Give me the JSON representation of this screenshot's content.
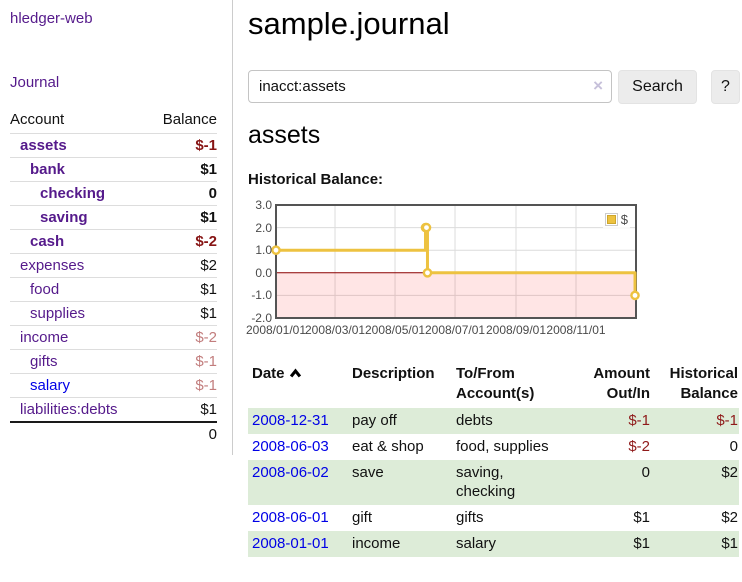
{
  "brand": "hledger-web",
  "sidebar": {
    "journal_link": "Journal",
    "table": {
      "col_account": "Account",
      "col_balance": "Balance",
      "rows": [
        {
          "name": "assets",
          "depth": 0,
          "matched": true,
          "blue": false,
          "balance": "$-1",
          "balance_class": "neg-strong"
        },
        {
          "name": "bank",
          "depth": 1,
          "matched": true,
          "blue": false,
          "balance": "$1",
          "balance_class": ""
        },
        {
          "name": "checking",
          "depth": 2,
          "matched": true,
          "blue": false,
          "balance": "0",
          "balance_class": ""
        },
        {
          "name": "saving",
          "depth": 2,
          "matched": true,
          "blue": false,
          "balance": "$1",
          "balance_class": ""
        },
        {
          "name": "cash",
          "depth": 1,
          "matched": true,
          "blue": false,
          "balance": "$-2",
          "balance_class": "neg-strong"
        },
        {
          "name": "expenses",
          "depth": 0,
          "matched": false,
          "blue": false,
          "balance": "$2",
          "balance_class": ""
        },
        {
          "name": "food",
          "depth": 1,
          "matched": false,
          "blue": false,
          "balance": "$1",
          "balance_class": ""
        },
        {
          "name": "supplies",
          "depth": 1,
          "matched": false,
          "blue": false,
          "balance": "$1",
          "balance_class": ""
        },
        {
          "name": "income",
          "depth": 0,
          "matched": false,
          "blue": false,
          "balance": "$-2",
          "balance_class": "neg-soft"
        },
        {
          "name": "gifts",
          "depth": 1,
          "matched": false,
          "blue": false,
          "balance": "$-1",
          "balance_class": "neg-soft"
        },
        {
          "name": "salary",
          "depth": 1,
          "matched": false,
          "blue": true,
          "balance": "$-1",
          "balance_class": "neg-soft"
        },
        {
          "name": "liabilities:debts",
          "depth": 0,
          "matched": false,
          "blue": false,
          "balance": "$1",
          "balance_class": ""
        }
      ],
      "total": "0"
    }
  },
  "header": {
    "title": "sample.journal"
  },
  "search": {
    "value": "inacct:assets",
    "clear": "×",
    "search_label": "Search",
    "help_label": "?"
  },
  "account_page": {
    "heading": "assets",
    "chart_label": "Historical Balance:"
  },
  "chart_data": {
    "type": "line",
    "style": "steps",
    "title": "Historical Balance",
    "ylim": [
      -2,
      3
    ],
    "xlim": [
      "2008-01-01",
      "2009-01-01"
    ],
    "y_ticks": [
      {
        "v": 3,
        "label": "3.0"
      },
      {
        "v": 2,
        "label": "2.0"
      },
      {
        "v": 1,
        "label": "1.0"
      },
      {
        "v": 0,
        "label": "0.0"
      },
      {
        "v": -1,
        "label": "-1.0"
      },
      {
        "v": -2,
        "label": "-2.0"
      }
    ],
    "x_ticks": [
      "2008/01/01",
      "2008/03/01",
      "2008/05/01",
      "2008/07/01",
      "2008/09/01",
      "2008/11/01"
    ],
    "grid": true,
    "legend": {
      "label": "$",
      "position": "top-right"
    },
    "negative_region": true,
    "series": [
      {
        "name": "$",
        "color": "#edc240",
        "points": [
          {
            "date": "2008-01-01",
            "value": 1
          },
          {
            "date": "2008-06-01",
            "value": 2
          },
          {
            "date": "2008-06-02",
            "value": 2
          },
          {
            "date": "2008-06-03",
            "value": 0
          },
          {
            "date": "2008-12-31",
            "value": -1
          }
        ]
      }
    ]
  },
  "register": {
    "headers": {
      "date": "Date",
      "description": "Description",
      "tofrom1": "To/From",
      "tofrom2": "Account(s)",
      "amount1": "Amount",
      "amount2": "Out/In",
      "hist1": "Historical",
      "hist2": "Balance"
    },
    "rows": [
      {
        "date": "2008-12-31",
        "description": "pay off",
        "accounts": "debts",
        "amount": "$-1",
        "balance": "$-1"
      },
      {
        "date": "2008-06-03",
        "description": "eat & shop",
        "accounts": "food, supplies",
        "amount": "$-2",
        "balance": "0"
      },
      {
        "date": "2008-06-02",
        "description": "save",
        "accounts": "saving, checking",
        "amount": "0",
        "balance": "$2"
      },
      {
        "date": "2008-06-01",
        "description": "gift",
        "accounts": "gifts",
        "amount": "$1",
        "balance": "$2"
      },
      {
        "date": "2008-01-01",
        "description": "income",
        "accounts": "salary",
        "amount": "$1",
        "balance": "$1"
      }
    ]
  },
  "colors": {
    "accent_purple": "#551a8b",
    "link_blue": "#0000e6",
    "negative_strong": "#871414",
    "negative_soft": "#c27d7d",
    "row_green": "#ddecd8",
    "series_gold": "#edc240",
    "zero_line_red": "#8b0000",
    "chart_border": "#545454"
  }
}
